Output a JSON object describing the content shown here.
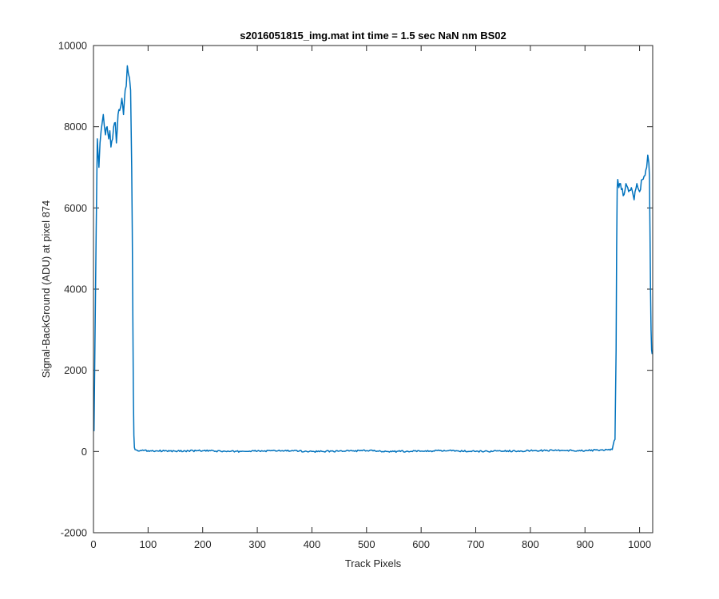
{
  "chart_data": {
    "type": "line",
    "title": "s2016051815_img.mat int time = 1.5 sec  NaN nm BS02",
    "xlabel": "Track Pixels",
    "ylabel": "Signal-BackGround (ADU) at pixel 874",
    "xlim": [
      0,
      1024
    ],
    "ylim": [
      -2000,
      10000
    ],
    "xticks": [
      0,
      100,
      200,
      300,
      400,
      500,
      600,
      700,
      800,
      900,
      1000
    ],
    "yticks": [
      -2000,
      0,
      2000,
      4000,
      6000,
      8000,
      10000
    ],
    "grid": false,
    "line_color": "#0072BD",
    "series": [
      {
        "x": [
          1,
          3,
          5,
          7,
          10,
          12,
          14,
          16,
          18,
          20,
          22,
          25,
          28,
          30,
          32,
          35,
          37,
          40,
          42,
          45,
          48,
          50,
          52,
          55,
          58,
          60,
          62,
          64,
          66,
          68,
          70,
          71,
          72,
          73,
          74,
          75,
          76,
          78,
          80,
          100,
          150,
          200,
          250,
          300,
          350,
          400,
          450,
          500,
          550,
          600,
          650,
          700,
          750,
          800,
          850,
          900,
          950,
          955,
          957,
          958,
          959,
          960,
          962,
          965,
          970,
          975,
          980,
          985,
          990,
          995,
          1000,
          1005,
          1010,
          1013,
          1015,
          1017,
          1018,
          1019,
          1020,
          1021,
          1022,
          1023
        ],
        "y": [
          500,
          3000,
          5500,
          7700,
          7000,
          7600,
          7900,
          8100,
          8300,
          8000,
          7800,
          8000,
          7700,
          7900,
          7500,
          7700,
          8000,
          8100,
          7600,
          8300,
          8400,
          8500,
          8700,
          8300,
          8900,
          9000,
          9500,
          9300,
          9200,
          8900,
          7000,
          5500,
          3500,
          1500,
          400,
          100,
          50,
          40,
          30,
          20,
          10,
          20,
          0,
          10,
          20,
          0,
          10,
          20,
          0,
          10,
          20,
          0,
          10,
          20,
          30,
          20,
          50,
          300,
          2500,
          5000,
          6500,
          6700,
          6500,
          6600,
          6300,
          6600,
          6400,
          6500,
          6200,
          6600,
          6400,
          6700,
          6800,
          7000,
          7300,
          7100,
          6800,
          5500,
          4000,
          3000,
          2500,
          2400
        ]
      }
    ]
  }
}
